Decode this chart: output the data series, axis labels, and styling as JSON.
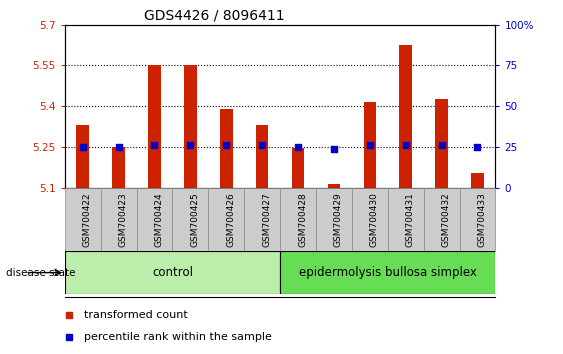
{
  "title": "GDS4426 / 8096411",
  "samples": [
    "GSM700422",
    "GSM700423",
    "GSM700424",
    "GSM700425",
    "GSM700426",
    "GSM700427",
    "GSM700428",
    "GSM700429",
    "GSM700430",
    "GSM700431",
    "GSM700432",
    "GSM700433"
  ],
  "transformed_counts": [
    5.33,
    5.25,
    5.55,
    5.55,
    5.39,
    5.33,
    5.245,
    5.115,
    5.415,
    5.625,
    5.425,
    5.155
  ],
  "percentile_ranks": [
    25,
    25,
    26,
    26,
    26,
    26,
    25,
    24,
    26,
    26,
    26,
    25
  ],
  "ylim_left": [
    5.1,
    5.7
  ],
  "ylim_right": [
    0,
    100
  ],
  "yticks_left": [
    5.1,
    5.25,
    5.4,
    5.55,
    5.7
  ],
  "ytick_labels_left": [
    "5.1",
    "5.25",
    "5.4",
    "5.55",
    "5.7"
  ],
  "yticks_right": [
    0,
    25,
    50,
    75,
    100
  ],
  "ytick_labels_right": [
    "0",
    "25",
    "50",
    "75",
    "100%"
  ],
  "bar_color": "#cc2200",
  "dot_color": "#0000cc",
  "bar_width": 0.35,
  "base_value": 5.1,
  "n_control": 6,
  "n_ebs": 6,
  "control_label": "control",
  "ebs_label": "epidermolysis bullosa simplex",
  "disease_state_label": "disease state",
  "control_color": "#bbeeaa",
  "ebs_color": "#66dd55",
  "legend_bar_label": "transformed count",
  "legend_dot_label": "percentile rank within the sample",
  "axis_color_left": "#cc2200",
  "axis_color_right": "#0000cc",
  "sample_box_color": "#cccccc",
  "sample_box_edge": "#888888"
}
